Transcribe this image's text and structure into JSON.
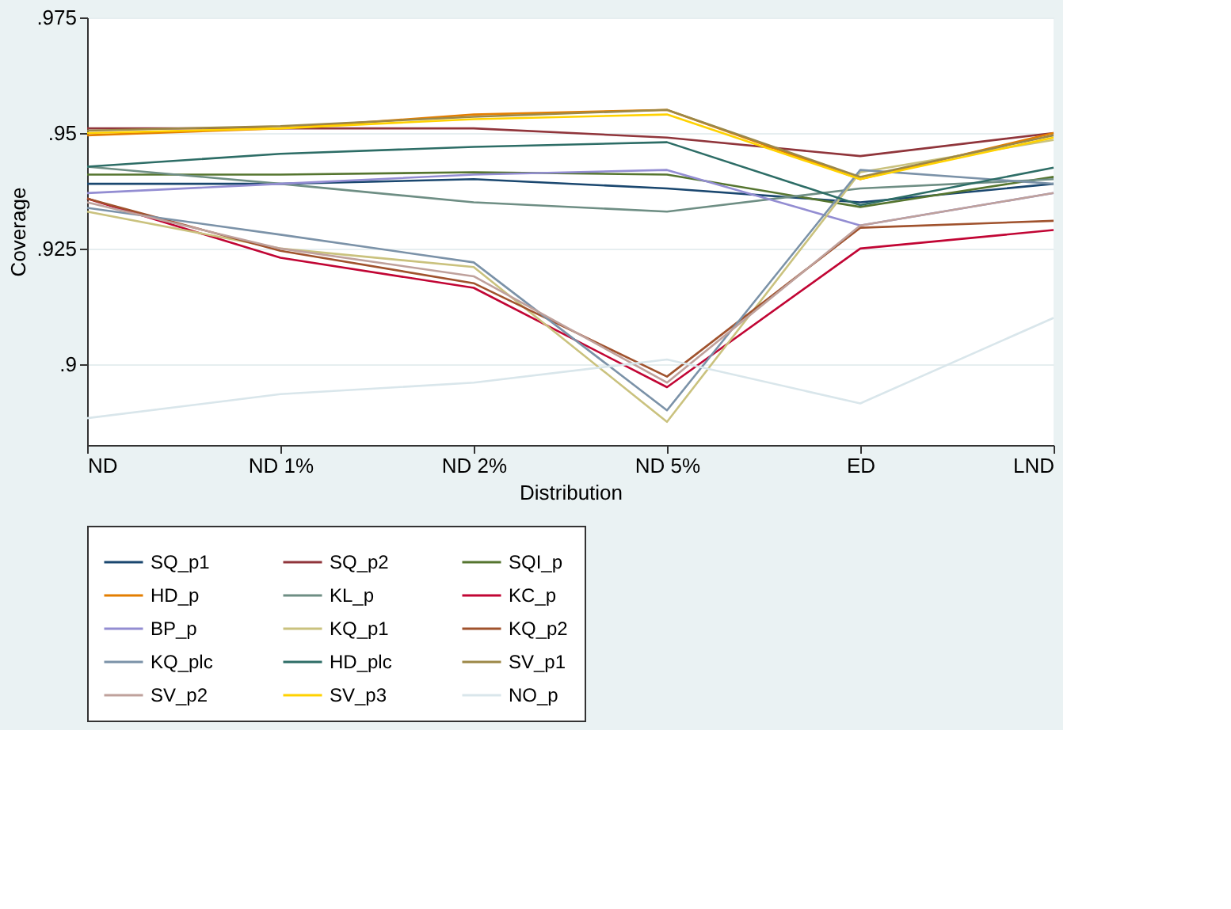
{
  "chart_data": {
    "type": "line",
    "xlabel": "Distribution",
    "ylabel": "Coverage",
    "categories": [
      "ND",
      "ND 1%",
      "ND 2%",
      "ND 5%",
      "ED",
      "LND"
    ],
    "ylim": [
      0.8825,
      0.975
    ],
    "yticks": [
      {
        "value": 0.9,
        "label": ".9"
      },
      {
        "value": 0.925,
        "label": ".925"
      },
      {
        "value": 0.95,
        "label": ".95"
      },
      {
        "value": 0.975,
        "label": ".975"
      }
    ],
    "grid": "y",
    "legend": "bottom",
    "line_style": "solid",
    "marker": "none",
    "series": [
      {
        "name": "SQ_p1",
        "color": "#1a476f",
        "values": [
          0.939,
          0.939,
          0.94,
          0.938,
          0.935,
          0.939
        ]
      },
      {
        "name": "SQ_p2",
        "color": "#90353b",
        "values": [
          0.951,
          0.951,
          0.951,
          0.949,
          0.945,
          0.95
        ]
      },
      {
        "name": "SQI_p",
        "color": "#55752f",
        "values": [
          0.941,
          0.941,
          0.9415,
          0.941,
          0.934,
          0.9405
        ]
      },
      {
        "name": "HD_p",
        "color": "#e37e00",
        "values": [
          0.9495,
          0.951,
          0.954,
          0.955,
          0.94,
          0.95
        ]
      },
      {
        "name": "KL_p",
        "color": "#6e8e84",
        "values": [
          0.9427,
          0.939,
          0.935,
          0.933,
          0.938,
          0.94
        ]
      },
      {
        "name": "KC_p",
        "color": "#c10534",
        "values": [
          0.9358,
          0.923,
          0.9165,
          0.895,
          0.925,
          0.929
        ]
      },
      {
        "name": "BP_p",
        "color": "#938dd2",
        "values": [
          0.937,
          0.939,
          0.941,
          0.942,
          0.93,
          0.937
        ]
      },
      {
        "name": "KQ_p1",
        "color": "#cac27e",
        "values": [
          0.933,
          0.925,
          0.921,
          0.8875,
          0.9415,
          0.9485
        ]
      },
      {
        "name": "KQ_p2",
        "color": "#a0522d",
        "values": [
          0.9358,
          0.9245,
          0.9175,
          0.8973,
          0.9295,
          0.931
        ]
      },
      {
        "name": "KQ_plc",
        "color": "#7b92a8",
        "values": [
          0.9338,
          0.928,
          0.922,
          0.89,
          0.942,
          0.939
        ]
      },
      {
        "name": "HD_plc",
        "color": "#2d6d66",
        "values": [
          0.9427,
          0.9455,
          0.947,
          0.948,
          0.9344,
          0.9425
        ]
      },
      {
        "name": "SV_p1",
        "color": "#9c8847",
        "values": [
          0.9505,
          0.9515,
          0.9535,
          0.955,
          0.9405,
          0.9495
        ]
      },
      {
        "name": "SV_p2",
        "color": "#bfa19c",
        "values": [
          0.935,
          0.925,
          0.919,
          0.896,
          0.93,
          0.937
        ]
      },
      {
        "name": "SV_p3",
        "color": "#ffd200",
        "values": [
          0.95,
          0.951,
          0.953,
          0.954,
          0.94,
          0.949
        ]
      },
      {
        "name": "NO_p",
        "color": "#d9e6eb",
        "values": [
          0.8883,
          0.8935,
          0.896,
          0.901,
          0.8915,
          0.91
        ]
      }
    ]
  }
}
